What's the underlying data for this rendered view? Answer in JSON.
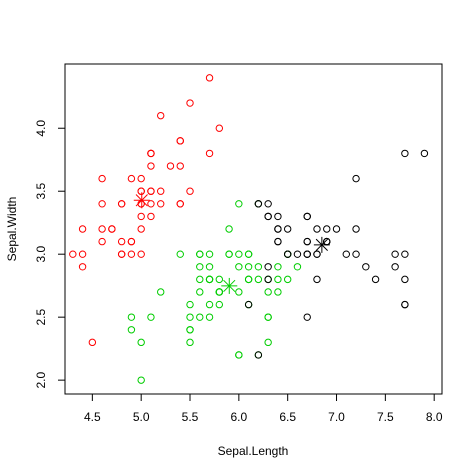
{
  "chart_data": {
    "type": "scatter",
    "title": "",
    "xlabel": "Sepal.Length",
    "ylabel": "Sepal.Width",
    "xlim": [
      4.22,
      8.08
    ],
    "ylim": [
      1.89,
      4.51
    ],
    "xticks": [
      "4.5",
      "5.0",
      "5.5",
      "6.0",
      "6.5",
      "7.0",
      "7.5",
      "8.0"
    ],
    "yticks": [
      "2.0",
      "2.5",
      "3.0",
      "3.5",
      "4.0"
    ],
    "grid": false,
    "legend": "none",
    "marker": "open-circle",
    "series": [
      {
        "color": "#ff0000",
        "points": [
          [
            5.1,
            3.5
          ],
          [
            4.9,
            3.0
          ],
          [
            4.7,
            3.2
          ],
          [
            4.6,
            3.1
          ],
          [
            5.0,
            3.6
          ],
          [
            5.4,
            3.9
          ],
          [
            4.6,
            3.4
          ],
          [
            5.0,
            3.4
          ],
          [
            4.4,
            2.9
          ],
          [
            4.9,
            3.1
          ],
          [
            5.4,
            3.7
          ],
          [
            4.8,
            3.4
          ],
          [
            4.8,
            3.0
          ],
          [
            4.3,
            3.0
          ],
          [
            5.8,
            4.0
          ],
          [
            5.7,
            4.4
          ],
          [
            5.4,
            3.9
          ],
          [
            5.1,
            3.5
          ],
          [
            5.7,
            3.8
          ],
          [
            5.1,
            3.8
          ],
          [
            5.4,
            3.4
          ],
          [
            5.1,
            3.7
          ],
          [
            4.6,
            3.6
          ],
          [
            5.1,
            3.3
          ],
          [
            4.8,
            3.4
          ],
          [
            5.0,
            3.0
          ],
          [
            5.0,
            3.4
          ],
          [
            5.2,
            3.5
          ],
          [
            5.2,
            3.4
          ],
          [
            4.7,
            3.2
          ],
          [
            4.8,
            3.1
          ],
          [
            5.4,
            3.4
          ],
          [
            5.2,
            4.1
          ],
          [
            5.5,
            4.2
          ],
          [
            4.9,
            3.1
          ],
          [
            5.0,
            3.2
          ],
          [
            5.5,
            3.5
          ],
          [
            4.9,
            3.6
          ],
          [
            4.4,
            3.0
          ],
          [
            5.1,
            3.4
          ],
          [
            5.0,
            3.5
          ],
          [
            4.5,
            2.3
          ],
          [
            4.4,
            3.2
          ],
          [
            5.0,
            3.5
          ],
          [
            5.1,
            3.8
          ],
          [
            4.8,
            3.0
          ],
          [
            5.1,
            3.8
          ],
          [
            4.6,
            3.2
          ],
          [
            5.3,
            3.7
          ],
          [
            5.0,
            3.3
          ]
        ],
        "center": [
          5.006,
          3.428
        ]
      },
      {
        "color": "#00cd00",
        "points": [
          [
            5.7,
            2.8
          ],
          [
            5.5,
            2.3
          ],
          [
            6.5,
            2.8
          ],
          [
            5.7,
            2.8
          ],
          [
            4.9,
            2.4
          ],
          [
            6.6,
            2.9
          ],
          [
            5.2,
            2.7
          ],
          [
            5.0,
            2.0
          ],
          [
            5.9,
            3.0
          ],
          [
            6.0,
            2.2
          ],
          [
            6.1,
            2.9
          ],
          [
            5.6,
            2.9
          ],
          [
            5.6,
            3.0
          ],
          [
            5.8,
            2.7
          ],
          [
            6.2,
            2.2
          ],
          [
            5.6,
            2.5
          ],
          [
            5.9,
            3.2
          ],
          [
            6.1,
            2.8
          ],
          [
            6.3,
            2.5
          ],
          [
            6.1,
            2.8
          ],
          [
            6.4,
            2.9
          ],
          [
            6.0,
            2.9
          ],
          [
            5.7,
            2.6
          ],
          [
            5.5,
            2.4
          ],
          [
            5.5,
            2.4
          ],
          [
            5.8,
            2.7
          ],
          [
            6.0,
            2.7
          ],
          [
            5.4,
            3.0
          ],
          [
            6.0,
            3.4
          ],
          [
            6.3,
            2.3
          ],
          [
            5.6,
            3.0
          ],
          [
            5.5,
            2.5
          ],
          [
            5.5,
            2.6
          ],
          [
            6.1,
            3.0
          ],
          [
            5.8,
            2.6
          ],
          [
            5.0,
            2.3
          ],
          [
            5.6,
            2.7
          ],
          [
            5.7,
            3.0
          ],
          [
            5.7,
            2.9
          ],
          [
            6.2,
            2.9
          ],
          [
            5.1,
            2.5
          ],
          [
            5.7,
            2.8
          ],
          [
            5.8,
            2.7
          ],
          [
            4.9,
            2.5
          ],
          [
            5.7,
            2.5
          ],
          [
            5.8,
            2.8
          ],
          [
            6.4,
            2.7
          ],
          [
            6.5,
            3.0
          ],
          [
            6.0,
            2.2
          ],
          [
            5.6,
            2.8
          ],
          [
            6.3,
            2.7
          ],
          [
            6.2,
            2.8
          ],
          [
            6.1,
            3.0
          ],
          [
            6.4,
            2.8
          ],
          [
            6.3,
            2.8
          ],
          [
            6.1,
            2.6
          ],
          [
            6.0,
            3.0
          ],
          [
            5.8,
            2.7
          ],
          [
            6.3,
            2.5
          ],
          [
            6.5,
            3.0
          ],
          [
            6.2,
            3.4
          ],
          [
            5.9,
            3.0
          ]
        ],
        "center": [
          5.902,
          2.748
        ]
      },
      {
        "color": "#000000",
        "points": [
          [
            7.0,
            3.2
          ],
          [
            6.4,
            3.2
          ],
          [
            6.9,
            3.1
          ],
          [
            6.7,
            3.1
          ],
          [
            6.3,
            3.3
          ],
          [
            6.7,
            3.0
          ],
          [
            6.8,
            2.8
          ],
          [
            6.7,
            3.0
          ],
          [
            6.2,
            2.2
          ],
          [
            6.6,
            3.0
          ],
          [
            6.8,
            3.0
          ],
          [
            6.3,
            3.3
          ],
          [
            7.1,
            3.0
          ],
          [
            6.5,
            3.0
          ],
          [
            7.6,
            3.0
          ],
          [
            7.3,
            2.9
          ],
          [
            6.7,
            2.5
          ],
          [
            7.2,
            3.6
          ],
          [
            6.4,
            3.2
          ],
          [
            6.8,
            3.0
          ],
          [
            6.4,
            3.1
          ],
          [
            7.7,
            3.8
          ],
          [
            7.7,
            2.6
          ],
          [
            6.9,
            3.2
          ],
          [
            7.7,
            2.8
          ],
          [
            6.7,
            3.3
          ],
          [
            7.2,
            3.2
          ],
          [
            7.2,
            3.0
          ],
          [
            7.4,
            2.8
          ],
          [
            7.9,
            3.8
          ],
          [
            6.3,
            2.8
          ],
          [
            6.1,
            2.6
          ],
          [
            7.7,
            3.0
          ],
          [
            6.3,
            3.4
          ],
          [
            6.4,
            3.1
          ],
          [
            6.9,
            3.1
          ],
          [
            6.7,
            3.1
          ],
          [
            6.9,
            3.1
          ],
          [
            6.8,
            3.2
          ],
          [
            6.7,
            3.3
          ],
          [
            6.7,
            3.0
          ],
          [
            6.5,
            3.0
          ],
          [
            6.2,
            3.4
          ],
          [
            7.6,
            2.9
          ],
          [
            7.7,
            2.6
          ],
          [
            6.4,
            3.3
          ],
          [
            6.5,
            3.2
          ],
          [
            6.3,
            2.9
          ],
          [
            6.2,
            3.4
          ]
        ],
        "center": [
          6.85,
          3.074
        ]
      }
    ]
  }
}
